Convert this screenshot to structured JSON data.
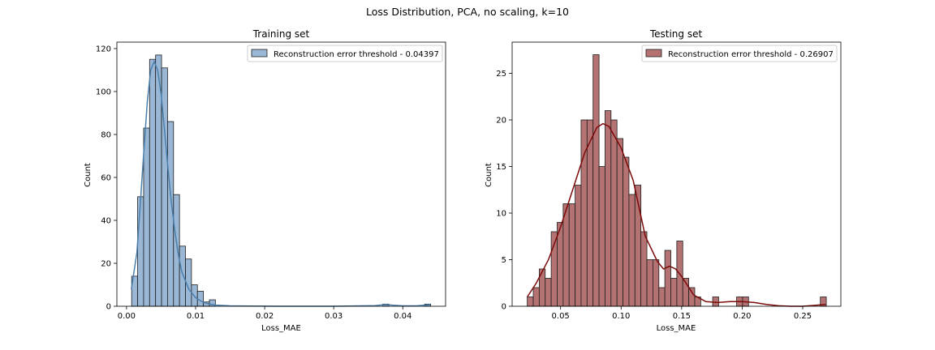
{
  "figure": {
    "suptitle": "Loss Distribution, PCA, no scaling, k=10"
  },
  "chart_data": [
    {
      "type": "histogram",
      "title": "Training set",
      "xlabel": "Loss_MAE",
      "ylabel": "Count",
      "xlim": [
        -0.0014,
        0.0462
      ],
      "ylim": [
        0,
        123
      ],
      "xticks": [
        0.0,
        0.01,
        0.02,
        0.03,
        0.04
      ],
      "xtick_labels": [
        "0.00",
        "0.01",
        "0.02",
        "0.03",
        "0.04"
      ],
      "yticks": [
        0,
        20,
        40,
        60,
        80,
        100,
        120
      ],
      "grid": false,
      "legend": {
        "position": "top-right",
        "label": "Reconstruction error threshold - 0.04397"
      },
      "colors": {
        "fill": "#9ab7d6",
        "edge": "#1f1f1f",
        "kde": "#4a7fac"
      },
      "bin_start": 0.00074,
      "bin_width": 0.000866,
      "values": [
        14,
        51,
        83,
        115,
        117,
        111,
        86,
        52,
        28,
        22,
        10,
        7,
        2,
        3,
        0,
        0,
        0,
        0,
        0,
        0,
        0,
        0,
        0,
        0,
        0,
        0,
        0,
        0,
        0,
        0,
        0,
        0,
        0,
        0,
        0,
        0,
        0,
        0,
        0,
        0,
        0,
        0,
        1,
        0,
        0,
        0,
        0,
        0,
        0,
        1
      ],
      "kde": {
        "x": [
          0.0007,
          0.0015,
          0.002,
          0.0025,
          0.003,
          0.0035,
          0.004,
          0.0045,
          0.005,
          0.0055,
          0.006,
          0.0065,
          0.007,
          0.0075,
          0.008,
          0.009,
          0.01,
          0.011,
          0.012,
          0.013,
          0.015,
          0.018,
          0.022,
          0.03,
          0.036,
          0.0375,
          0.0385,
          0.04,
          0.042,
          0.0435,
          0.044
        ],
        "y": [
          8,
          25,
          48,
          72,
          95,
          110,
          114,
          110,
          99,
          82,
          64,
          48,
          35,
          24,
          16,
          8,
          4,
          2,
          1,
          0.5,
          0.2,
          0.1,
          0,
          0,
          0.3,
          0.8,
          0.5,
          0.2,
          0.2,
          0.6,
          0.8
        ]
      }
    },
    {
      "type": "histogram",
      "title": "Testing set",
      "xlabel": "Loss_MAE",
      "ylabel": "Count",
      "xlim": [
        0.01,
        0.2815
      ],
      "ylim": [
        0,
        28.35
      ],
      "xticks": [
        0.05,
        0.1,
        0.15,
        0.2,
        0.25
      ],
      "xtick_labels": [
        "0.05",
        "0.10",
        "0.15",
        "0.20",
        "0.25"
      ],
      "yticks": [
        0,
        5,
        10,
        15,
        20,
        25
      ],
      "grid": false,
      "legend": {
        "position": "top-right",
        "label": "Reconstruction error threshold - 0.26907"
      },
      "colors": {
        "fill": "#b47272",
        "edge": "#1f1f1f",
        "kde": "#7c0a0a"
      },
      "bin_start": 0.0225,
      "bin_width": 0.00494,
      "values": [
        1,
        2,
        4,
        3,
        8,
        9,
        11,
        11,
        13,
        20,
        20,
        27,
        15,
        21,
        20,
        18,
        16,
        12,
        13,
        8,
        5,
        5,
        2,
        6,
        3,
        7,
        3,
        2,
        1,
        0,
        0,
        1,
        0,
        0,
        0,
        1,
        1,
        0,
        0,
        0,
        0,
        0,
        0,
        0,
        0,
        0,
        0,
        0,
        0,
        1
      ],
      "kde": {
        "x": [
          0.0225,
          0.03,
          0.04,
          0.05,
          0.06,
          0.07,
          0.08,
          0.085,
          0.09,
          0.1,
          0.11,
          0.115,
          0.12,
          0.13,
          0.135,
          0.14,
          0.145,
          0.15,
          0.155,
          0.16,
          0.17,
          0.18,
          0.19,
          0.2,
          0.21,
          0.22,
          0.23,
          0.24,
          0.25,
          0.26,
          0.269
        ],
        "y": [
          1.0,
          2.5,
          5.0,
          8.5,
          12.5,
          16.5,
          19.2,
          19.6,
          19.3,
          17.0,
          13.5,
          10.5,
          7.5,
          4.8,
          4.0,
          4.3,
          4.0,
          3.2,
          2.2,
          1.2,
          0.5,
          0.4,
          0.5,
          0.5,
          0.4,
          0.2,
          0.05,
          0.0,
          0.0,
          0.1,
          0.2
        ]
      }
    }
  ]
}
